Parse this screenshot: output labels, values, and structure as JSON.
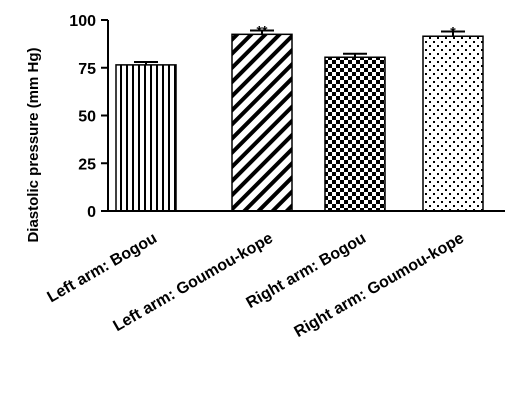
{
  "chart_data": {
    "type": "bar",
    "title": "",
    "xlabel": "",
    "ylabel": "Diastolic pressure (mm Hg)",
    "ylim": [
      0,
      100
    ],
    "yticks": [
      "0",
      "25",
      "50",
      "75",
      "100"
    ],
    "categories": [
      "Left arm: Bogou",
      "Left arm: Goumou-kope",
      "Right arm: Bogou",
      "Right arm: Goumou-kope"
    ],
    "values": [
      76.5,
      92.5,
      80.5,
      91.5
    ],
    "errors": [
      1.5,
      2.0,
      1.8,
      2.5
    ],
    "annotations": [
      "",
      "**",
      "",
      "*"
    ],
    "patterns": [
      "vertical-stripes",
      "diagonal-stripes",
      "checkerboard",
      "dots"
    ],
    "grid": false,
    "legend": "none"
  }
}
